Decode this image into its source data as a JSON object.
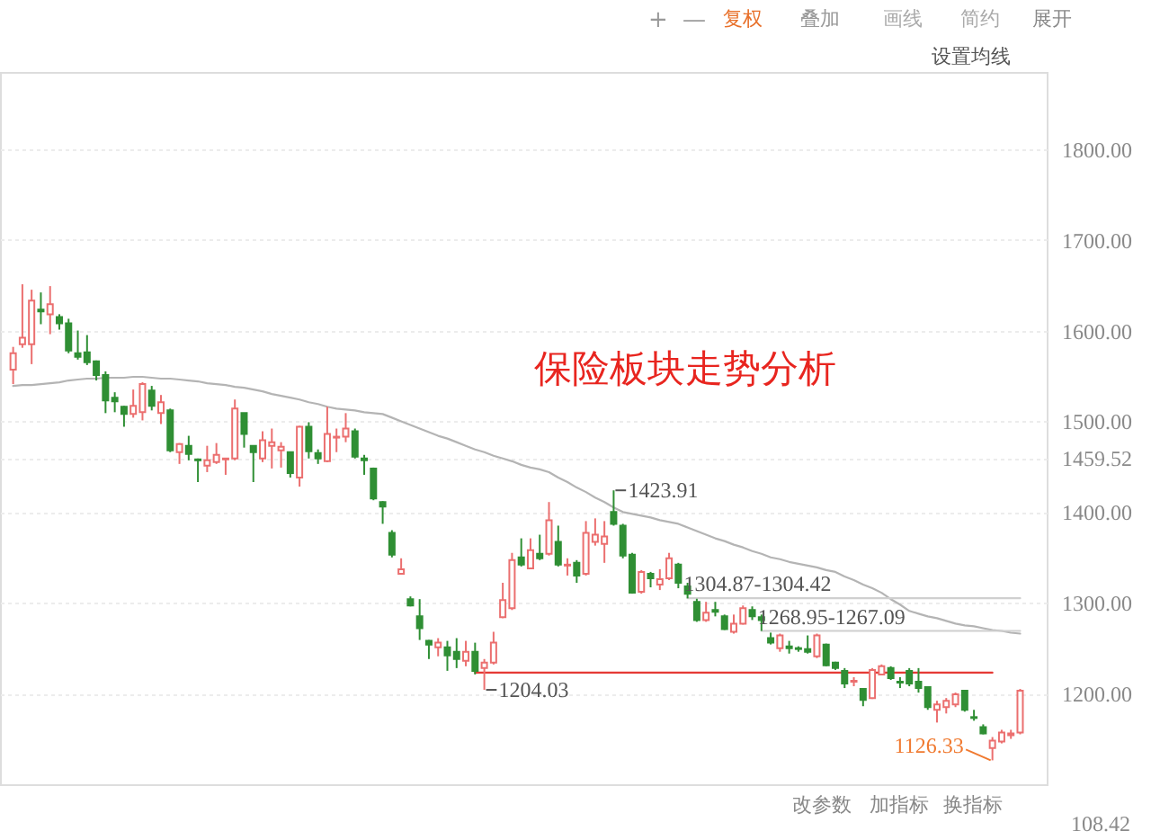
{
  "chart_data": {
    "type": "candlestick",
    "title": "保险板块走势分析",
    "categories": [
      null,
      null,
      null,
      null,
      null,
      null,
      null,
      null,
      null,
      null,
      null,
      null,
      null,
      null,
      null,
      null,
      null,
      null,
      null,
      null,
      null,
      null,
      null,
      null,
      null,
      null,
      null,
      null,
      null,
      null,
      null,
      null,
      null,
      null,
      null,
      null,
      null,
      null,
      null,
      null,
      null,
      null,
      null,
      null,
      null,
      null,
      null,
      null,
      null,
      null,
      null,
      null,
      null,
      null,
      null,
      null,
      null,
      null,
      null,
      null,
      null,
      null,
      null,
      null,
      null,
      null,
      null,
      null,
      null,
      null,
      null,
      null,
      null,
      null,
      null,
      null,
      null,
      null,
      null,
      null,
      null,
      null,
      null,
      null,
      null,
      null,
      null,
      null,
      null,
      null,
      null,
      null,
      null,
      null,
      null,
      null,
      null,
      null,
      null,
      null,
      null,
      null,
      null,
      null,
      null,
      null,
      null,
      null,
      null,
      null
    ],
    "ohlc": [
      [
        1557,
        1582,
        1541,
        1575
      ],
      [
        1585,
        1651,
        1581,
        1592
      ],
      [
        1585,
        1645,
        1563,
        1633
      ],
      [
        1623,
        1642,
        1607,
        1621
      ],
      [
        1618,
        1649,
        1596,
        1629
      ],
      [
        1615,
        1618,
        1601,
        1608
      ],
      [
        1608,
        1613,
        1575,
        1578
      ],
      [
        1575,
        1600,
        1568,
        1571
      ],
      [
        1576,
        1595,
        1562,
        1565
      ],
      [
        1566,
        1567,
        1545,
        1551
      ],
      [
        1551,
        1555,
        1509,
        1523
      ],
      [
        1526,
        1532,
        1510,
        1522
      ],
      [
        1516,
        1517,
        1494,
        1508
      ],
      [
        1508,
        1535,
        1504,
        1517
      ],
      [
        1510,
        1543,
        1501,
        1541
      ],
      [
        1534,
        1539,
        1512,
        1517
      ],
      [
        1509,
        1529,
        1497,
        1521
      ],
      [
        1512,
        1514,
        1466,
        1468
      ],
      [
        1466,
        1476,
        1453,
        1475
      ],
      [
        1473,
        1484,
        1457,
        1464
      ],
      [
        1458,
        1459,
        1433,
        1457
      ],
      [
        1451,
        1473,
        1444,
        1457
      ],
      [
        1455,
        1476,
        1453,
        1463
      ],
      [
        1458,
        1459,
        1441,
        1459
      ],
      [
        1459,
        1524,
        1457,
        1514
      ],
      [
        1509,
        1509,
        1471,
        1486
      ],
      [
        1473,
        1473,
        1433,
        1466
      ],
      [
        1459,
        1489,
        1455,
        1479
      ],
      [
        1473,
        1492,
        1448,
        1477
      ],
      [
        1468,
        1477,
        1449,
        1472
      ],
      [
        1466,
        1466,
        1438,
        1443
      ],
      [
        1438,
        1495,
        1428,
        1494
      ],
      [
        1494,
        1499,
        1459,
        1467
      ],
      [
        1465,
        1469,
        1453,
        1459
      ],
      [
        1456,
        1516,
        1455,
        1486
      ],
      [
        1482,
        1492,
        1466,
        1483
      ],
      [
        1483,
        1509,
        1477,
        1492
      ],
      [
        1489,
        1492,
        1459,
        1461
      ],
      [
        1459,
        1463,
        1441,
        1457
      ],
      [
        1448,
        1449,
        1413,
        1415
      ],
      [
        1411,
        1412,
        1387,
        1406
      ],
      [
        1377,
        1380,
        1350,
        1353
      ],
      [
        1332,
        1349,
        1331,
        1337
      ],
      [
        1304,
        1307,
        1296,
        1297
      ],
      [
        1285,
        1304,
        1259,
        1272
      ],
      [
        1258,
        1259,
        1238,
        1254
      ],
      [
        1251,
        1261,
        1241,
        1256
      ],
      [
        1251,
        1258,
        1225,
        1242
      ],
      [
        1246,
        1261,
        1228,
        1238
      ],
      [
        1236,
        1258,
        1230,
        1246
      ],
      [
        1246,
        1256,
        1221,
        1225
      ],
      [
        1228,
        1238,
        1204.03,
        1234
      ],
      [
        1234,
        1268,
        1232,
        1256
      ],
      [
        1284,
        1322,
        1283,
        1303
      ],
      [
        1294,
        1355,
        1292,
        1347
      ],
      [
        1350,
        1371,
        1340,
        1342
      ],
      [
        1338,
        1371,
        1337,
        1358
      ],
      [
        1354,
        1375,
        1347,
        1349
      ],
      [
        1354,
        1411,
        1352,
        1391
      ],
      [
        1367,
        1385,
        1340,
        1342
      ],
      [
        1341,
        1349,
        1330,
        1342
      ],
      [
        1344,
        1347,
        1322,
        1330
      ],
      [
        1332,
        1390,
        1330,
        1377
      ],
      [
        1367,
        1393,
        1363,
        1375
      ],
      [
        1365,
        1390,
        1344,
        1373
      ],
      [
        1400,
        1423.91,
        1385,
        1387
      ],
      [
        1385,
        1387,
        1349,
        1352
      ],
      [
        1353,
        1355,
        1310,
        1311
      ],
      [
        1312,
        1336,
        1310,
        1334
      ],
      [
        1332,
        1334,
        1317,
        1327
      ],
      [
        1320,
        1337,
        1314,
        1326
      ],
      [
        1327,
        1355,
        1325,
        1349
      ],
      [
        1342,
        1344,
        1316,
        1322
      ],
      [
        1318,
        1322,
        1304.87,
        1310
      ],
      [
        1301,
        1304.42,
        1279,
        1281
      ],
      [
        1281,
        1301,
        1279,
        1289
      ],
      [
        1292,
        1301,
        1285,
        1290
      ],
      [
        1285,
        1287,
        1270,
        1271
      ],
      [
        1268,
        1287,
        1266,
        1277
      ],
      [
        1277,
        1297,
        1276,
        1294
      ],
      [
        1292,
        1296,
        1281,
        1285
      ],
      [
        1284,
        1287,
        1268.95,
        1281
      ],
      [
        1261,
        1267.09,
        1254,
        1256
      ],
      [
        1250,
        1266,
        1246,
        1264
      ],
      [
        1252,
        1258,
        1244,
        1250
      ],
      [
        1250,
        1252,
        1246,
        1249
      ],
      [
        1249,
        1264,
        1244,
        1246
      ],
      [
        1241,
        1266,
        1239,
        1264
      ],
      [
        1254,
        1255,
        1230,
        1231
      ],
      [
        1234,
        1235,
        1226,
        1228
      ],
      [
        1225,
        1228,
        1206,
        1211
      ],
      [
        1213,
        1218,
        1208,
        1214
      ],
      [
        1205,
        1206,
        1186,
        1193
      ],
      [
        1195,
        1228,
        1194,
        1226
      ],
      [
        1221,
        1232,
        1220,
        1230
      ],
      [
        1228,
        1230,
        1215,
        1217
      ],
      [
        1213,
        1218,
        1206,
        1212
      ],
      [
        1225,
        1228,
        1208,
        1211
      ],
      [
        1213,
        1228,
        1201,
        1206
      ],
      [
        1207,
        1208,
        1182,
        1185
      ],
      [
        1182,
        1192,
        1168,
        1188
      ],
      [
        1185,
        1195,
        1178,
        1192
      ],
      [
        1188,
        1201,
        1185,
        1199
      ],
      [
        1203,
        1203,
        1180,
        1182
      ],
      [
        1174,
        1182,
        1170,
        1173
      ],
      [
        1163,
        1166,
        1155,
        1156
      ],
      [
        1140,
        1152,
        1126.33,
        1148
      ],
      [
        1147,
        1160,
        1145,
        1157
      ],
      [
        1154,
        1160,
        1150,
        1156
      ],
      [
        1157,
        1205,
        1155,
        1203
      ]
    ],
    "colors": [
      "#eb6f6f",
      "#eb6f6f",
      "#eb6f6f",
      "#2f8f34",
      "#eb6f6f",
      "#2f8f34",
      "#2f8f34",
      "#2f8f34",
      "#2f8f34",
      "#2f8f34",
      "#2f8f34",
      "#2f8f34",
      "#2f8f34",
      "#eb6f6f",
      "#eb6f6f",
      "#2f8f34",
      "#eb6f6f",
      "#2f8f34",
      "#eb6f6f",
      "#2f8f34",
      "#2f8f34",
      "#eb6f6f",
      "#eb6f6f",
      "#eb6f6f",
      "#eb6f6f",
      "#2f8f34",
      "#2f8f34",
      "#eb6f6f",
      "#eb6f6f",
      "#eb6f6f",
      "#2f8f34",
      "#eb6f6f",
      "#2f8f34",
      "#2f8f34",
      "#eb6f6f",
      "#eb6f6f",
      "#eb6f6f",
      "#2f8f34",
      "#2f8f34",
      "#2f8f34",
      "#2f8f34",
      "#2f8f34",
      "#eb6f6f",
      "#2f8f34",
      "#2f8f34",
      "#2f8f34",
      "#eb6f6f",
      "#2f8f34",
      "#2f8f34",
      "#eb6f6f",
      "#2f8f34",
      "#eb6f6f",
      "#eb6f6f",
      "#eb6f6f",
      "#eb6f6f",
      "#2f8f34",
      "#eb6f6f",
      "#2f8f34",
      "#eb6f6f",
      "#2f8f34",
      "#eb6f6f",
      "#2f8f34",
      "#eb6f6f",
      "#eb6f6f",
      "#eb6f6f",
      "#2f8f34",
      "#2f8f34",
      "#2f8f34",
      "#eb6f6f",
      "#2f8f34",
      "#eb6f6f",
      "#eb6f6f",
      "#2f8f34",
      "#2f8f34",
      "#2f8f34",
      "#eb6f6f",
      "#2f8f34",
      "#2f8f34",
      "#eb6f6f",
      "#eb6f6f",
      "#2f8f34",
      "#2f8f34",
      "#2f8f34",
      "#eb6f6f",
      "#2f8f34",
      "#2f8f34",
      "#2f8f34",
      "#eb6f6f",
      "#2f8f34",
      "#2f8f34",
      "#2f8f34",
      "#eb6f6f",
      "#2f8f34",
      "#eb6f6f",
      "#eb6f6f",
      "#2f8f34",
      "#2f8f34",
      "#2f8f34",
      "#2f8f34",
      "#2f8f34",
      "#eb6f6f",
      "#eb6f6f",
      "#eb6f6f",
      "#2f8f34",
      "#2f8f34",
      "#2f8f34",
      "#eb6f6f",
      "#eb6f6f",
      "#eb6f6f",
      "#eb6f6f"
    ],
    "series": [
      {
        "type": "line",
        "color": "#b4b4b4",
        "values": [
          1539,
          1540,
          1540,
          1541,
          1542,
          1543,
          1545,
          1546,
          1547,
          1547,
          1548,
          1548,
          1548,
          1549,
          1549,
          1548,
          1547,
          1547,
          1546,
          1545,
          1544,
          1542,
          1541,
          1540,
          1538,
          1537,
          1535,
          1533,
          1530,
          1528,
          1526,
          1524,
          1521,
          1519,
          1516,
          1514,
          1513,
          1512,
          1510,
          1509,
          1508,
          1504,
          1500,
          1496,
          1492,
          1488,
          1484,
          1481,
          1477,
          1473,
          1469,
          1466,
          1462,
          1459,
          1456,
          1452,
          1449,
          1447,
          1444,
          1438,
          1433,
          1427,
          1422,
          1416,
          1411,
          1405,
          1400,
          1398,
          1396,
          1394,
          1391,
          1389,
          1387,
          1383,
          1379,
          1375,
          1371,
          1368,
          1364,
          1361,
          1357,
          1354,
          1350,
          1348,
          1345,
          1343,
          1341,
          1339,
          1336,
          1334,
          1329,
          1325,
          1320,
          1316,
          1311,
          1304,
          1298,
          1291,
          1288,
          1285,
          1283,
          1280,
          1277,
          1275,
          1274,
          1272,
          1270,
          1269,
          1267,
          1266
        ]
      },
      {
        "type": "line",
        "color": "#cfcfcf",
        "values": [
          null,
          null,
          null,
          null,
          null,
          null,
          null,
          null,
          null,
          null,
          null,
          null,
          null,
          null,
          null,
          null,
          null,
          null,
          null,
          null,
          null,
          null,
          null,
          null,
          null,
          null,
          null,
          null,
          null,
          null,
          null,
          null,
          null,
          null,
          null,
          null,
          null,
          null,
          null,
          null,
          null,
          null,
          null,
          null,
          null,
          null,
          null,
          null,
          null,
          null,
          null,
          null,
          null,
          null,
          null,
          null,
          null,
          null,
          null,
          null,
          null,
          null,
          null,
          null,
          null,
          null,
          null,
          null,
          null,
          null,
          null,
          null,
          null,
          1305,
          1305,
          1305,
          1305,
          1305,
          1305,
          1305,
          1305,
          1305,
          1305,
          1305,
          1305,
          1305,
          1305,
          1305,
          1305,
          1305,
          1305,
          1305,
          1305,
          1305,
          1305,
          1305,
          1305,
          1305,
          1305,
          1305,
          1305,
          1305,
          1305,
          1305,
          1305,
          1305,
          1305,
          1305,
          1305,
          1305
        ]
      },
      {
        "type": "line",
        "color": "#cfcfcf",
        "values": [
          null,
          null,
          null,
          null,
          null,
          null,
          null,
          null,
          null,
          null,
          null,
          null,
          null,
          null,
          null,
          null,
          null,
          null,
          null,
          null,
          null,
          null,
          null,
          null,
          null,
          null,
          null,
          null,
          null,
          null,
          null,
          null,
          null,
          null,
          null,
          null,
          null,
          null,
          null,
          null,
          null,
          null,
          null,
          null,
          null,
          null,
          null,
          null,
          null,
          null,
          null,
          null,
          null,
          null,
          null,
          null,
          null,
          null,
          null,
          null,
          null,
          null,
          null,
          null,
          null,
          null,
          null,
          null,
          null,
          null,
          null,
          null,
          null,
          null,
          null,
          null,
          null,
          null,
          null,
          null,
          null,
          1269,
          1269,
          1269,
          1269,
          1269,
          1269,
          1269,
          1269,
          1269,
          1269,
          1269,
          1269,
          1269,
          1269,
          1269,
          1269,
          1269,
          1269,
          1269,
          1269,
          1269,
          1269,
          1269,
          1269,
          1269,
          1269,
          1269,
          1269,
          1269
        ]
      },
      {
        "type": "line",
        "color": "#e53935",
        "values": [
          null,
          null,
          null,
          null,
          null,
          null,
          null,
          null,
          null,
          null,
          null,
          null,
          null,
          null,
          null,
          null,
          null,
          null,
          null,
          null,
          null,
          null,
          null,
          null,
          null,
          null,
          null,
          null,
          null,
          null,
          null,
          null,
          null,
          null,
          null,
          null,
          null,
          null,
          null,
          null,
          null,
          null,
          null,
          null,
          null,
          null,
          null,
          null,
          null,
          null,
          1223,
          1223,
          1223,
          1223,
          1223,
          1223,
          1223,
          1223,
          1223,
          1223,
          1223,
          1223,
          1223,
          1223,
          1223,
          1223,
          1223,
          1223,
          1223,
          1223,
          1223,
          1223,
          1223,
          1223,
          1223,
          1223,
          1223,
          1223,
          1223,
          1223,
          1223,
          1223,
          1223,
          1223,
          1223,
          1223,
          1223,
          1223,
          1223,
          1223,
          1223,
          1223,
          1223,
          1223,
          1223,
          1223,
          1223,
          1223,
          1223,
          1223,
          1223,
          1223,
          1223,
          1223,
          1223,
          1223,
          1223,
          null,
          null,
          null
        ]
      }
    ],
    "ylim": [
      1100,
      1885
    ],
    "yticks": [
      {
        "value": 1200,
        "label": "1200.00"
      },
      {
        "value": 1300,
        "label": "1300.00"
      },
      {
        "value": 1400,
        "label": "1400.00"
      },
      1459.52,
      {
        "value": 1500,
        "label": "1500.00"
      },
      {
        "value": 1600,
        "label": "1600.00"
      },
      {
        "value": 1700,
        "label": "1700.00"
      },
      {
        "value": 1800,
        "label": "1800.00"
      }
    ],
    "grid": "y",
    "annotations": [
      "1423.91",
      "1304.87-1304.42",
      "1268.95-1267.09",
      "1204.03",
      "1126.33",
      "+",
      "—",
      "复权",
      "叠加",
      "画线",
      "简约",
      "展开",
      "设置均线",
      "改参数",
      "加指标",
      "换指标",
      "108.42"
    ]
  }
}
